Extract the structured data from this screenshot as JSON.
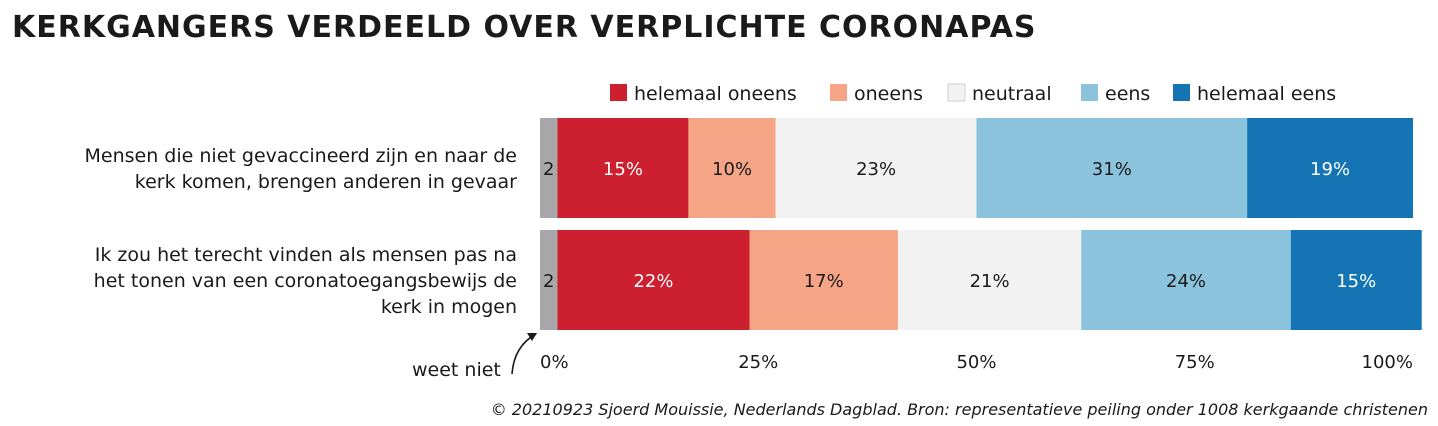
{
  "title": "KERKGANGERS VERDEELD OVER VERPLICHTE CORONAPAS",
  "source": "© 20210923 Sjoerd Mouissie, Nederlands Dagblad. Bron: representatieve peiling onder 1008 kerkgaande christenen",
  "chart_data": {
    "type": "bar",
    "orientation": "horizontal",
    "stacked": true,
    "categories": [
      [
        "Mensen die niet gevaccineerd zijn en naar de",
        "kerk komen, brengen anderen in gevaar"
      ],
      [
        "Ik zou het terecht vinden als mensen pas na",
        "het tonen van een coronatoegangsbewijs de",
        "kerk in mogen"
      ]
    ],
    "series": [
      {
        "name": "weet niet",
        "color": "#a8a8a8",
        "values": [
          2,
          2
        ],
        "labels": [
          "2",
          "2"
        ],
        "label_color": "#1a1a1a"
      },
      {
        "name": "helemaal oneens",
        "color": "#cc1f2f",
        "values": [
          15,
          22
        ],
        "labels": [
          "15%",
          "22%"
        ],
        "label_color": "#ffffff"
      },
      {
        "name": "oneens",
        "color": "#f5a585",
        "values": [
          10,
          17
        ],
        "labels": [
          "10%",
          "17%"
        ],
        "label_color": "#1a1a1a"
      },
      {
        "name": "neutraal",
        "color": "#f2f2f2",
        "values": [
          23,
          21
        ],
        "labels": [
          "23%",
          "21%"
        ],
        "label_color": "#1a1a1a"
      },
      {
        "name": "eens",
        "color": "#8cc3dc",
        "values": [
          31,
          24
        ],
        "labels": [
          "31%",
          "24%"
        ],
        "label_color": "#1a1a1a"
      },
      {
        "name": "helemaal eens",
        "color": "#1474b4",
        "values": [
          19,
          15
        ],
        "labels": [
          "19%",
          "15%"
        ],
        "label_color": "#ffffff"
      }
    ],
    "legend_items": [
      "helemaal oneens",
      "oneens",
      "neutraal",
      "eens",
      "helemaal eens"
    ],
    "legend_position": "top-right",
    "xlim": [
      0,
      100
    ],
    "x_ticks": [
      "0%",
      "25%",
      "50%",
      "75%",
      "100%"
    ],
    "annotation": "weet niet",
    "grid": false
  }
}
